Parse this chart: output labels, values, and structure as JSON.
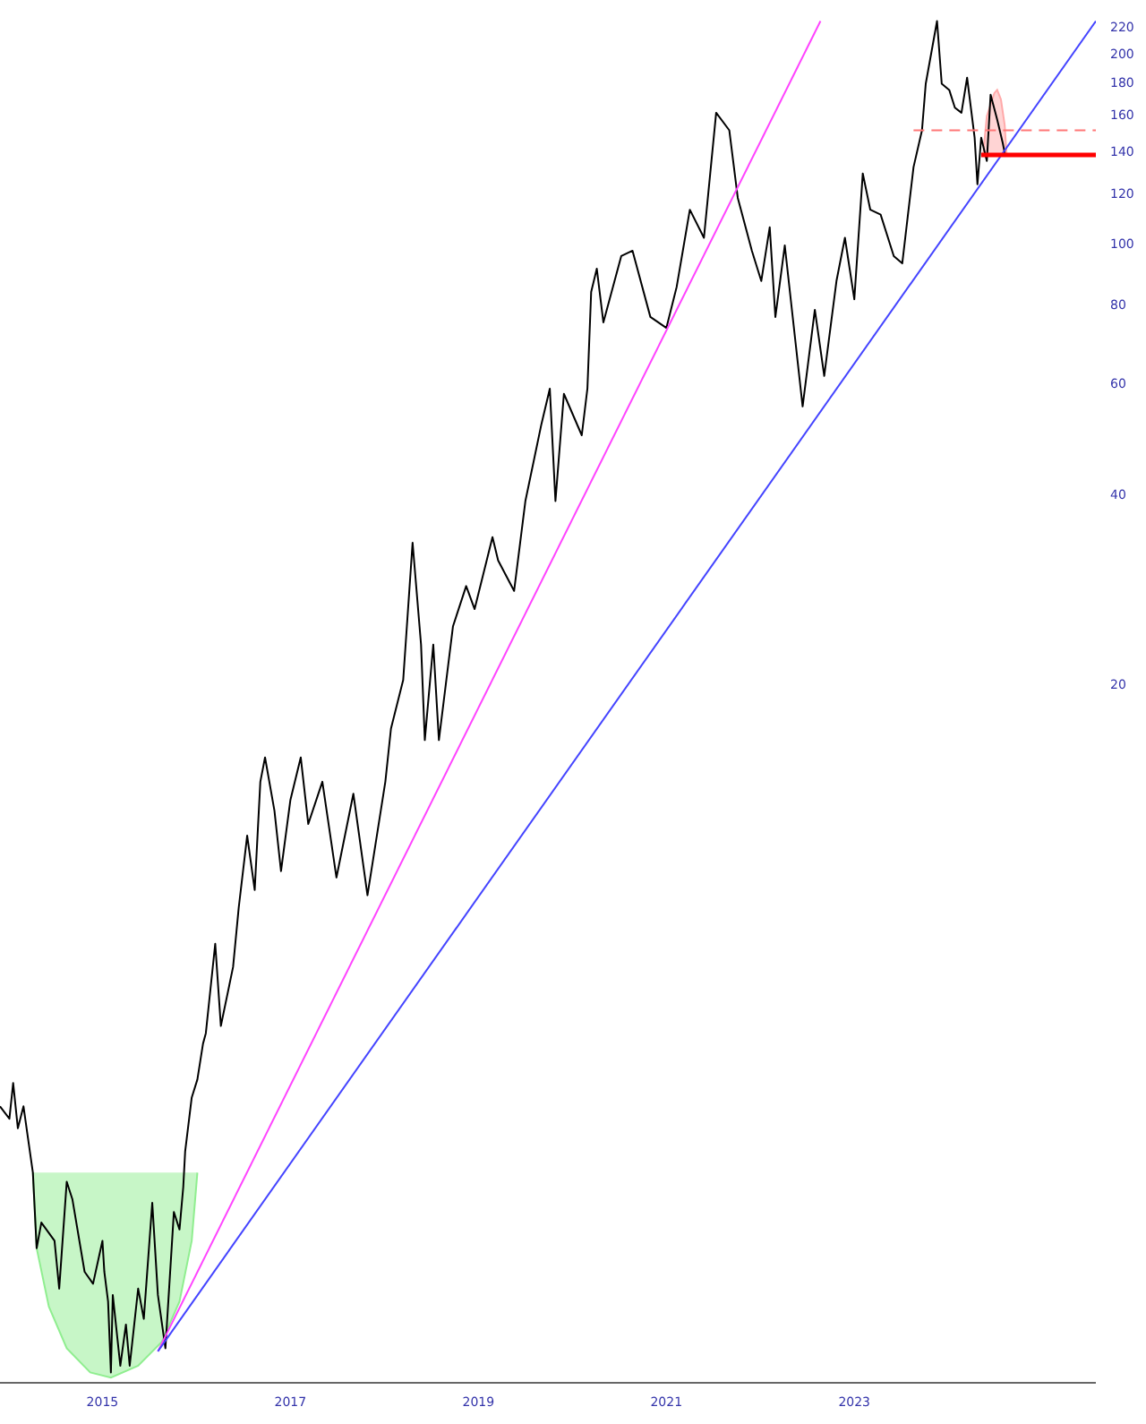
{
  "chart_data": {
    "type": "line",
    "log": true,
    "marker": "none",
    "xlim": [
      2013.91,
      2025.57
    ],
    "xticks": [
      2015,
      2017,
      2019,
      2021,
      2023
    ],
    "ylim": [
      1.56,
      243
    ],
    "yticks": [
      20,
      40,
      60,
      80,
      100,
      120,
      140,
      160,
      180,
      200,
      220
    ],
    "grid": false,
    "series": [
      {
        "type": "area",
        "color": "#90ee90",
        "x": [
          2014.26,
          2014.3,
          2014.43,
          2014.62,
          2014.87,
          2015.09,
          2015.38,
          2015.63,
          2015.82,
          2015.95,
          2016.01
        ],
        "values": [
          3.36,
          2.55,
          2.06,
          1.77,
          1.62,
          1.59,
          1.66,
          1.81,
          2.1,
          2.62,
          3.36
        ]
      },
      {
        "type": "area",
        "color": "#ffaaaa",
        "x": [
          2024.37,
          2024.41,
          2024.49,
          2024.52,
          2024.56,
          2024.6,
          2024.62
        ],
        "values": [
          138,
          159,
          173,
          175,
          169,
          154,
          138
        ]
      },
      {
        "color": "#000000",
        "x": [
          2013.91,
          2014.01,
          2014.05,
          2014.1,
          2014.16,
          2014.22,
          2014.26,
          2014.3,
          2014.35,
          2014.49,
          2014.54,
          2014.62,
          2014.68,
          2014.81,
          2014.9,
          2015.0,
          2015.02,
          2015.06,
          2015.09,
          2015.11,
          2015.19,
          2015.25,
          2015.29,
          2015.38,
          2015.44,
          2015.53,
          2015.59,
          2015.67,
          2015.76,
          2015.82,
          2015.86,
          2015.88,
          2015.95,
          2016.01,
          2016.07,
          2016.1,
          2016.2,
          2016.26,
          2016.39,
          2016.45,
          2016.54,
          2016.62,
          2016.68,
          2016.73,
          2016.83,
          2016.9,
          2017.0,
          2017.11,
          2017.19,
          2017.34,
          2017.49,
          2017.67,
          2017.82,
          2018.01,
          2018.07,
          2018.2,
          2018.3,
          2018.39,
          2018.43,
          2018.52,
          2018.58,
          2018.73,
          2018.87,
          2018.96,
          2019.15,
          2019.21,
          2019.38,
          2019.5,
          2019.67,
          2019.76,
          2019.82,
          2019.91,
          2020.1,
          2020.16,
          2020.2,
          2020.26,
          2020.33,
          2020.52,
          2020.64,
          2020.83,
          2021.0,
          2021.11,
          2021.25,
          2021.4,
          2021.53,
          2021.67,
          2021.76,
          2021.91,
          2022.01,
          2022.1,
          2022.16,
          2022.26,
          2022.45,
          2022.58,
          2022.68,
          2022.81,
          2022.9,
          2023.0,
          2023.09,
          2023.17,
          2023.28,
          2023.42,
          2023.51,
          2023.63,
          2023.72,
          2023.76,
          2023.88,
          2023.93,
          2024.01,
          2024.07,
          2024.14,
          2024.2,
          2024.28,
          2024.31,
          2024.35,
          2024.41,
          2024.45,
          2024.52,
          2024.58,
          2024.6
        ],
        "values": [
          4.28,
          4.09,
          4.66,
          3.95,
          4.28,
          3.7,
          3.36,
          2.55,
          2.8,
          2.62,
          2.2,
          3.25,
          3.05,
          2.34,
          2.24,
          2.62,
          2.34,
          2.1,
          1.62,
          2.15,
          1.66,
          1.93,
          1.66,
          2.2,
          1.97,
          3.01,
          2.15,
          1.77,
          2.91,
          2.73,
          3.19,
          3.63,
          4.42,
          4.72,
          5.38,
          5.59,
          7.75,
          5.74,
          7.12,
          8.84,
          11.5,
          9.43,
          14.0,
          15.3,
          12.6,
          10.1,
          13.1,
          15.3,
          12.0,
          14.0,
          9.87,
          13.4,
          9.25,
          14.0,
          17.0,
          20.3,
          33.5,
          23.1,
          16.3,
          23.1,
          16.3,
          24.7,
          28.6,
          26.3,
          34.2,
          31.4,
          28.1,
          39.0,
          51.6,
          58.8,
          39.0,
          57.7,
          49.6,
          58.8,
          83.7,
          91.1,
          74.9,
          95.4,
          97.3,
          76.4,
          73.4,
          85.3,
          113,
          102,
          161,
          151,
          118,
          97.3,
          87.1,
          106,
          76.4,
          99.2,
          55.1,
          78.4,
          61.6,
          87.1,
          102,
          81.5,
          129,
          113,
          111,
          95.4,
          92.9,
          132,
          151,
          179,
          225,
          179,
          175,
          164,
          161,
          183,
          147,
          124,
          147,
          135,
          172,
          157,
          144,
          139
        ]
      },
      {
        "type": "line",
        "color": "#ff44ff",
        "x": [
          2015.59,
          2022.64
        ],
        "values": [
          1.75,
          225
        ]
      },
      {
        "type": "line",
        "color": "#4444ff",
        "x": [
          2015.59,
          2025.57
        ],
        "values": [
          1.75,
          225
        ]
      },
      {
        "type": "line",
        "color": "#ff7777",
        "line_style": "dashed",
        "x": [
          2023.63,
          2025.57
        ],
        "values": [
          151,
          151
        ]
      },
      {
        "type": "line",
        "color": "#ff0000",
        "x": [
          2024.35,
          2025.57
        ],
        "values": [
          138,
          138
        ]
      }
    ]
  }
}
